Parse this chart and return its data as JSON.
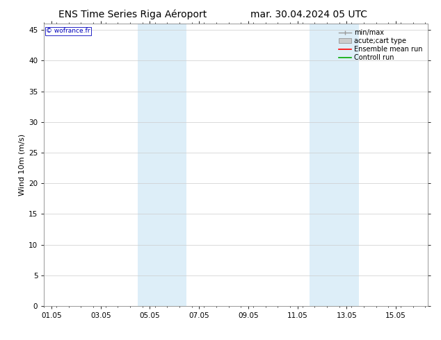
{
  "title_left": "ENS Time Series Riga Aéroport",
  "title_right": "mar. 30.04.2024 05 UTC",
  "ylabel": "Wind 10m (m/s)",
  "watermark": "© wofrance.fr",
  "ylim": [
    0,
    46
  ],
  "yticks": [
    0,
    5,
    10,
    15,
    20,
    25,
    30,
    35,
    40,
    45
  ],
  "xtick_labels": [
    "01.05",
    "03.05",
    "05.05",
    "07.05",
    "09.05",
    "11.05",
    "13.05",
    "15.05"
  ],
  "xtick_positions": [
    0,
    2,
    4,
    6,
    8,
    10,
    12,
    14
  ],
  "xlim": [
    -0.3,
    15.3
  ],
  "shade_bands": [
    {
      "xmin": 3.8,
      "xmax": 4.5,
      "color": "#ddeef8"
    },
    {
      "xmin": 4.5,
      "xmax": 5.5,
      "color": "#ddeef8"
    },
    {
      "xmin": 10.8,
      "xmax": 11.5,
      "color": "#ddeef8"
    },
    {
      "xmin": 11.5,
      "xmax": 12.7,
      "color": "#ddeef8"
    }
  ],
  "legend_items": [
    {
      "label": "min/max",
      "color": "#999999",
      "type": "hline_caps"
    },
    {
      "label": "acute;cart type",
      "color": "#cccccc",
      "type": "box"
    },
    {
      "label": "Ensemble mean run",
      "color": "#ff0000",
      "type": "line"
    },
    {
      "label": "Controll run",
      "color": "#00aa00",
      "type": "line"
    }
  ],
  "bg_color": "#ffffff",
  "plot_bg_color": "#ffffff",
  "grid_color": "#cccccc",
  "title_fontsize": 10,
  "tick_fontsize": 7.5,
  "ylabel_fontsize": 8,
  "legend_fontsize": 7
}
